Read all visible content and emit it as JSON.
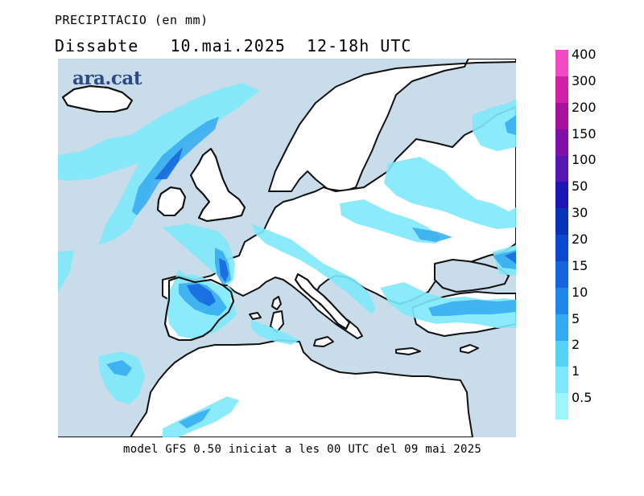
{
  "header": {
    "title": "PRECIPITACIO (en mm)",
    "subtitle": "Dissabte   10.mai.2025  12-18h UTC"
  },
  "logo": {
    "text": "ara.cat"
  },
  "footer": {
    "text": "model GFS 0.50 iniciat a les 00 UTC del 09 mai 2025"
  },
  "colors": {
    "sea": "#c8dcea",
    "land": "#ffffff",
    "coast": "#111111"
  },
  "legend": {
    "labels": [
      "0.5",
      "1",
      "2",
      "5",
      "10",
      "15",
      "20",
      "30",
      "50",
      "100",
      "150",
      "200",
      "300",
      "400"
    ],
    "colors": [
      "#9ff5ff",
      "#7fe9fb",
      "#55d3f5",
      "#33aaf0",
      "#1f86ea",
      "#1465de",
      "#0b48cf",
      "#0733b8",
      "#1e15b5",
      "#5417b3",
      "#8010a8",
      "#a8119a",
      "#d021a8",
      "#f04bc5"
    ]
  }
}
